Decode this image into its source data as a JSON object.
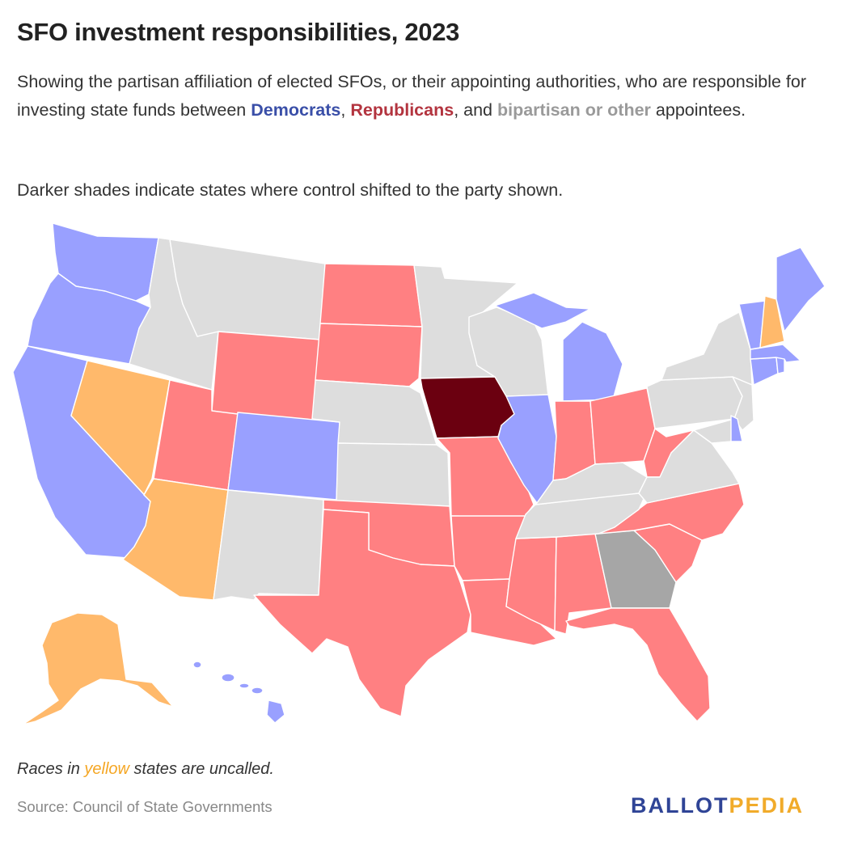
{
  "title": "SFO investment responsibilities, 2023",
  "subtitle": {
    "part1": "Showing the partisan affiliation of elected SFOs, or their appointing authorities, who are responsible for investing state funds between ",
    "democrats": "Democrats",
    "sep1": ", ",
    "republicans": "Republicans",
    "sep2": ", and ",
    "other": "bipartisan or other",
    "part2": " appointees."
  },
  "note": "Darker shades indicate states where control shifted to the party shown.",
  "footnote": {
    "part1": "Races in ",
    "yellow": "yellow",
    "part2": " states are uncalled."
  },
  "source": "Source: Council of State Governments",
  "logo": {
    "part1": "BALLOT",
    "part2": "PEDIA"
  },
  "colors": {
    "democrat": "#99a0ff",
    "republican": "#ff8082",
    "republican_shift": "#6b0010",
    "bipartisan_other": "#a6a6a6",
    "uncalled": "#ffb96b",
    "no_data": "#dddddd"
  },
  "states": {
    "WA": "democrat",
    "OR": "democrat",
    "CA": "democrat",
    "CO": "democrat",
    "IL": "democrat",
    "MI": "democrat",
    "ME": "democrat",
    "VT": "democrat",
    "MA": "democrat",
    "CT": "democrat",
    "RI": "democrat",
    "DE": "democrat",
    "HI": "democrat",
    "NV": "uncalled",
    "AZ": "uncalled",
    "AK": "uncalled",
    "NH": "uncalled",
    "UT": "republican",
    "WY": "republican",
    "ND": "republican",
    "SD": "republican",
    "TX": "republican",
    "OK": "republican",
    "MO": "republican",
    "AR": "republican",
    "LA": "republican",
    "MS": "republican",
    "AL": "republican",
    "FL": "republican",
    "SC": "republican",
    "NC": "republican",
    "IN": "republican",
    "OH": "republican",
    "WV": "republican",
    "IA": "republican_shift",
    "GA": "bipartisan_other",
    "ID": "no_data",
    "MT": "no_data",
    "NM": "no_data",
    "NE": "no_data",
    "KS": "no_data",
    "MN": "no_data",
    "WI": "no_data",
    "KY": "no_data",
    "TN": "no_data",
    "VA": "no_data",
    "PA": "no_data",
    "NY": "no_data",
    "NJ": "no_data",
    "MD": "no_data"
  }
}
